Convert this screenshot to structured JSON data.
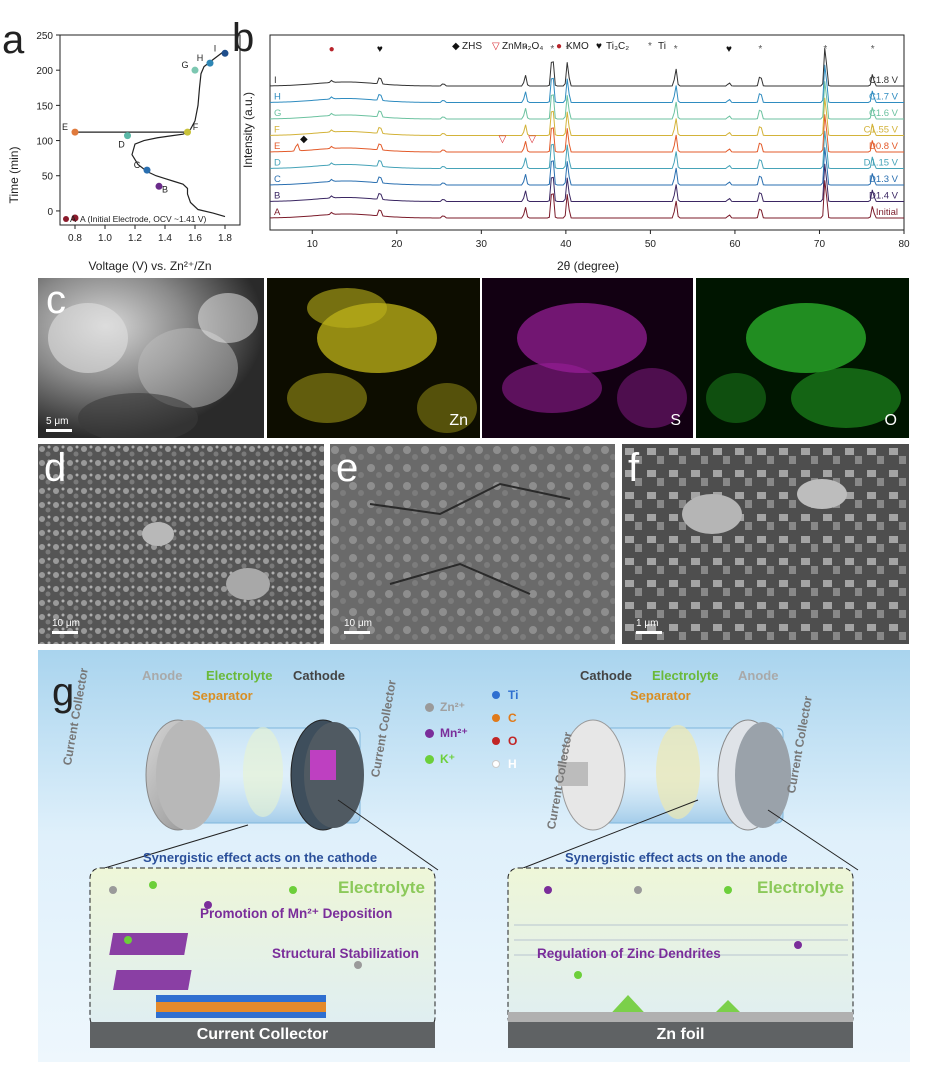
{
  "panel_labels": {
    "a": "a",
    "b": "b",
    "c": "c",
    "d": "d",
    "e": "e",
    "f": "f",
    "g": "g"
  },
  "chart_data": [
    {
      "type": "line",
      "xlabel": "Voltage (V) vs. Zn²⁺/Zn",
      "ylabel": "Time (min)",
      "xlim": [
        0.7,
        1.9
      ],
      "ylim": [
        -20,
        250
      ],
      "xticks": [
        "0.8",
        "1.0",
        "1.2",
        "1.4",
        "1.6",
        "1.8"
      ],
      "yticks": [
        "0",
        "50",
        "100",
        "150",
        "200",
        "250"
      ],
      "curve": {
        "x": [
          1.8,
          1.72,
          1.62,
          1.57,
          1.55,
          1.55,
          1.52,
          1.46,
          1.4,
          1.34,
          1.28,
          1.22,
          1.18,
          1.2,
          1.26,
          1.35,
          1.45,
          1.52,
          1.55,
          1.57,
          1.6,
          1.62,
          1.63,
          1.64,
          1.66,
          1.72,
          1.8
        ],
        "y": [
          -8,
          -3,
          2,
          12,
          24,
          32,
          38,
          42,
          46,
          50,
          56,
          66,
          80,
          95,
          100,
          104,
          107,
          109,
          112,
          116,
          128,
          150,
          175,
          195,
          205,
          215,
          228
        ]
      },
      "discharge_tail": {
        "x": [
          1.55,
          1.3,
          1.1,
          0.95,
          0.8
        ],
        "y": [
          112,
          112,
          112,
          112,
          112
        ]
      },
      "points": [
        {
          "label": "A",
          "x": 0.8,
          "y": -10,
          "color": "#8b1a2b"
        },
        {
          "label": "B",
          "x": 1.36,
          "y": 35,
          "color": "#6a2b8a"
        },
        {
          "label": "C",
          "x": 1.28,
          "y": 58,
          "color": "#2a6fb0"
        },
        {
          "label": "D",
          "x": 1.15,
          "y": 107,
          "color": "#5bb8a7"
        },
        {
          "label": "E",
          "x": 0.8,
          "y": 112,
          "color": "#e07a3c"
        },
        {
          "label": "F",
          "x": 1.55,
          "y": 112,
          "color": "#c8c23a"
        },
        {
          "label": "G",
          "x": 1.6,
          "y": 200,
          "color": "#7cc7b1"
        },
        {
          "label": "H",
          "x": 1.7,
          "y": 210,
          "color": "#2e86b5"
        },
        {
          "label": "I",
          "x": 1.8,
          "y": 224,
          "color": "#1f4e8c"
        }
      ],
      "legend_note": "A (Initial Electrode, OCV ~1.41 V)"
    },
    {
      "type": "line",
      "xlabel": "2θ (degree)",
      "ylabel": "Intensity (a.u.)",
      "xlim": [
        5,
        80
      ],
      "xticks": [
        "10",
        "20",
        "30",
        "40",
        "50",
        "60",
        "70",
        "80"
      ],
      "legend": [
        {
          "symbol": "◆",
          "label": "ZHS",
          "color": "#111111"
        },
        {
          "symbol": "▽",
          "label": "ZnMn₂O₄",
          "color": "#d9262d"
        },
        {
          "symbol": "●",
          "label": "KMO",
          "color": "#b8242b"
        },
        {
          "symbol": "♥",
          "label": "Ti₃C₂",
          "color": "#111111"
        },
        {
          "symbol": "*",
          "label": "Ti",
          "color": "#555555"
        }
      ],
      "series": [
        {
          "name": "A",
          "state": "Initial",
          "color": "#7b1b2a"
        },
        {
          "name": "B",
          "state": "D1.4 V",
          "color": "#3b2763"
        },
        {
          "name": "C",
          "state": "D1.3 V",
          "color": "#2a6fb0"
        },
        {
          "name": "D",
          "state": "D1.15 V",
          "color": "#46a3b8"
        },
        {
          "name": "E",
          "state": "D0.8 V",
          "color": "#e35b2b"
        },
        {
          "name": "F",
          "state": "C1.55 V",
          "color": "#d3b33a"
        },
        {
          "name": "G",
          "state": "C1.6 V",
          "color": "#6cc2a0"
        },
        {
          "name": "H",
          "state": "C1.7 V",
          "color": "#2f8cc0"
        },
        {
          "name": "I",
          "state": "C1.8 V",
          "color": "#333333"
        }
      ],
      "peaks": [
        {
          "x": 12.3,
          "h": 0.15
        },
        {
          "x": 18.0,
          "h": 0.6
        },
        {
          "x": 25.5,
          "h": 0.2
        },
        {
          "x": 35.2,
          "h": 0.8
        },
        {
          "x": 38.4,
          "h": 2.6
        },
        {
          "x": 40.2,
          "h": 1.8
        },
        {
          "x": 53.0,
          "h": 1.3
        },
        {
          "x": 59.3,
          "h": 0.25
        },
        {
          "x": 63.0,
          "h": 0.9
        },
        {
          "x": 70.7,
          "h": 3.2
        },
        {
          "x": 76.3,
          "h": 0.9
        }
      ],
      "zhs_peaks": [
        {
          "x": 8.2
        }
      ],
      "markers": [
        {
          "symbol": "●",
          "x": 12.3,
          "row": 8,
          "color": "#b8242b"
        },
        {
          "symbol": "♥",
          "x": 18.0,
          "row": 8,
          "color": "#111111"
        },
        {
          "symbol": "*",
          "x": 35.2,
          "row": 8,
          "color": "#555555"
        },
        {
          "symbol": "*",
          "x": 38.4,
          "row": 8,
          "color": "#555555"
        },
        {
          "symbol": "*",
          "x": 40.2,
          "row": 8,
          "color": "#555555"
        },
        {
          "symbol": "*",
          "x": 53.0,
          "row": 8,
          "color": "#555555"
        },
        {
          "symbol": "♥",
          "x": 59.3,
          "row": 8,
          "color": "#111111"
        },
        {
          "symbol": "*",
          "x": 63.0,
          "row": 8,
          "color": "#555555"
        },
        {
          "symbol": "*",
          "x": 70.7,
          "row": 8,
          "color": "#555555"
        },
        {
          "symbol": "*",
          "x": 76.3,
          "row": 8,
          "color": "#555555"
        },
        {
          "symbol": "◆",
          "x": 9.0,
          "row": 4,
          "color": "#111111"
        },
        {
          "symbol": "▽",
          "x": 32.5,
          "row": 4,
          "color": "#d9262d"
        },
        {
          "symbol": "▽",
          "x": 36.0,
          "row": 4,
          "color": "#d9262d"
        }
      ]
    }
  ],
  "eds": {
    "zn": "Zn",
    "s": "S",
    "o": "O"
  },
  "scale_bars": {
    "c": "5 μm",
    "d": "10 μm",
    "e": "10 μm",
    "f": "1 μm"
  },
  "g": {
    "left_cell": {
      "anode": "Anode",
      "electrolyte": "Electrolyte",
      "cathode": "Cathode",
      "separator": "Separator",
      "cc_left": "Current Collector",
      "cc_right": "Current Collector"
    },
    "right_cell": {
      "cathode": "Cathode",
      "electrolyte": "Electrolyte",
      "anode": "Anode",
      "separator": "Separator",
      "cc_left": "Current Collector",
      "cc_right": "Current Collector"
    },
    "legend_ions": [
      {
        "label": "Zn²⁺",
        "color": "#9a9a9a"
      },
      {
        "label": "Mn²⁺",
        "color": "#7a2d9a"
      },
      {
        "label": "K⁺",
        "color": "#6ccf3a"
      }
    ],
    "legend_atoms": [
      {
        "label": "Ti",
        "color": "#2f6fd0"
      },
      {
        "label": "C",
        "color": "#e07a1a"
      },
      {
        "label": "O",
        "color": "#c22525"
      },
      {
        "label": "H",
        "color": "#ffffff"
      }
    ],
    "cathode_title": "Synergistic effect acts on the cathode",
    "anode_title": "Synergistic effect acts on the anode",
    "electrolyte_left": "Electrolyte",
    "electrolyte_right": "Electrolyte",
    "mn_deposition": "Promotion of Mn²⁺ Deposition",
    "structural": "Structural Stabilization",
    "zinc_dendrites": "Regulation of Zinc Dendrites",
    "cc_base": "Current Collector",
    "zn_foil": "Zn foil"
  }
}
